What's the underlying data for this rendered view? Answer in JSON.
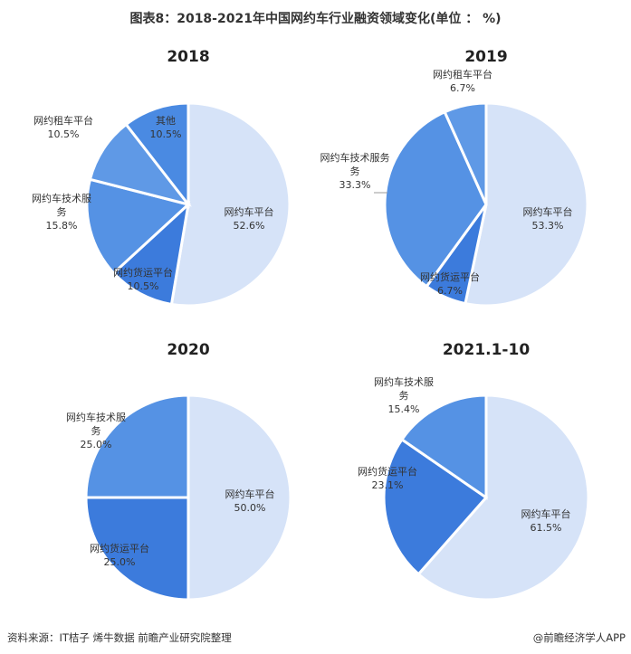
{
  "title": "图表8：2018-2021年中国网约车行业融资领域变化(单位 ： %)",
  "source": "资料来源：IT桔子 烯牛数据 前瞻产业研究院整理",
  "brand": "@前瞻经济学人APP",
  "chart_data": [
    {
      "type": "pie",
      "title": "2018",
      "slices": [
        {
          "label": [
            "网约车平台"
          ],
          "value": 52.6,
          "value_text": "52.6%",
          "color": "#d6e3f8"
        },
        {
          "label": [
            "网约货运平台"
          ],
          "value": 10.5,
          "value_text": "10.5%",
          "color": "#3c7bdc"
        },
        {
          "label": [
            "网约车技术服",
            "务"
          ],
          "value": 15.8,
          "value_text": "15.8%",
          "color": "#5592e4"
        },
        {
          "label": [
            "网约租车平台"
          ],
          "value": 10.5,
          "value_text": "10.5%",
          "color": "#5f99e6"
        },
        {
          "label": [
            "其他"
          ],
          "value": 10.5,
          "value_text": "10.5%",
          "color": "#4a8ae2"
        }
      ]
    },
    {
      "type": "pie",
      "title": "2019",
      "slices": [
        {
          "label": [
            "网约车平台"
          ],
          "value": 53.3,
          "value_text": "53.3%",
          "color": "#d6e3f8"
        },
        {
          "label": [
            "网约货运平台"
          ],
          "value": 6.7,
          "value_text": "6.7%",
          "color": "#3c7bdc"
        },
        {
          "label": [
            "网约车技术服务",
            "务"
          ],
          "value": 33.3,
          "value_text": "33.3%",
          "color": "#5592e4"
        },
        {
          "label": [
            "网约租车平台"
          ],
          "value": 6.7,
          "value_text": "6.7%",
          "color": "#5f99e6"
        }
      ]
    },
    {
      "type": "pie",
      "title": "2020",
      "slices": [
        {
          "label": [
            "网约车平台"
          ],
          "value": 50.0,
          "value_text": "50.0%",
          "color": "#d6e3f8"
        },
        {
          "label": [
            "网约货运平台"
          ],
          "value": 25.0,
          "value_text": "25.0%",
          "color": "#3c7bdc"
        },
        {
          "label": [
            "网约车技术服",
            "务"
          ],
          "value": 25.0,
          "value_text": "25.0%",
          "color": "#5592e4"
        }
      ]
    },
    {
      "type": "pie",
      "title": "2021.1-10",
      "slices": [
        {
          "label": [
            "网约车平台"
          ],
          "value": 61.5,
          "value_text": "61.5%",
          "color": "#d6e3f8"
        },
        {
          "label": [
            "网约货运平台"
          ],
          "value": 23.1,
          "value_text": "23.1%",
          "color": "#3c7bdc"
        },
        {
          "label": [
            "网约车技术服",
            "务"
          ],
          "value": 15.4,
          "value_text": "15.4%",
          "color": "#5592e4"
        }
      ]
    }
  ]
}
